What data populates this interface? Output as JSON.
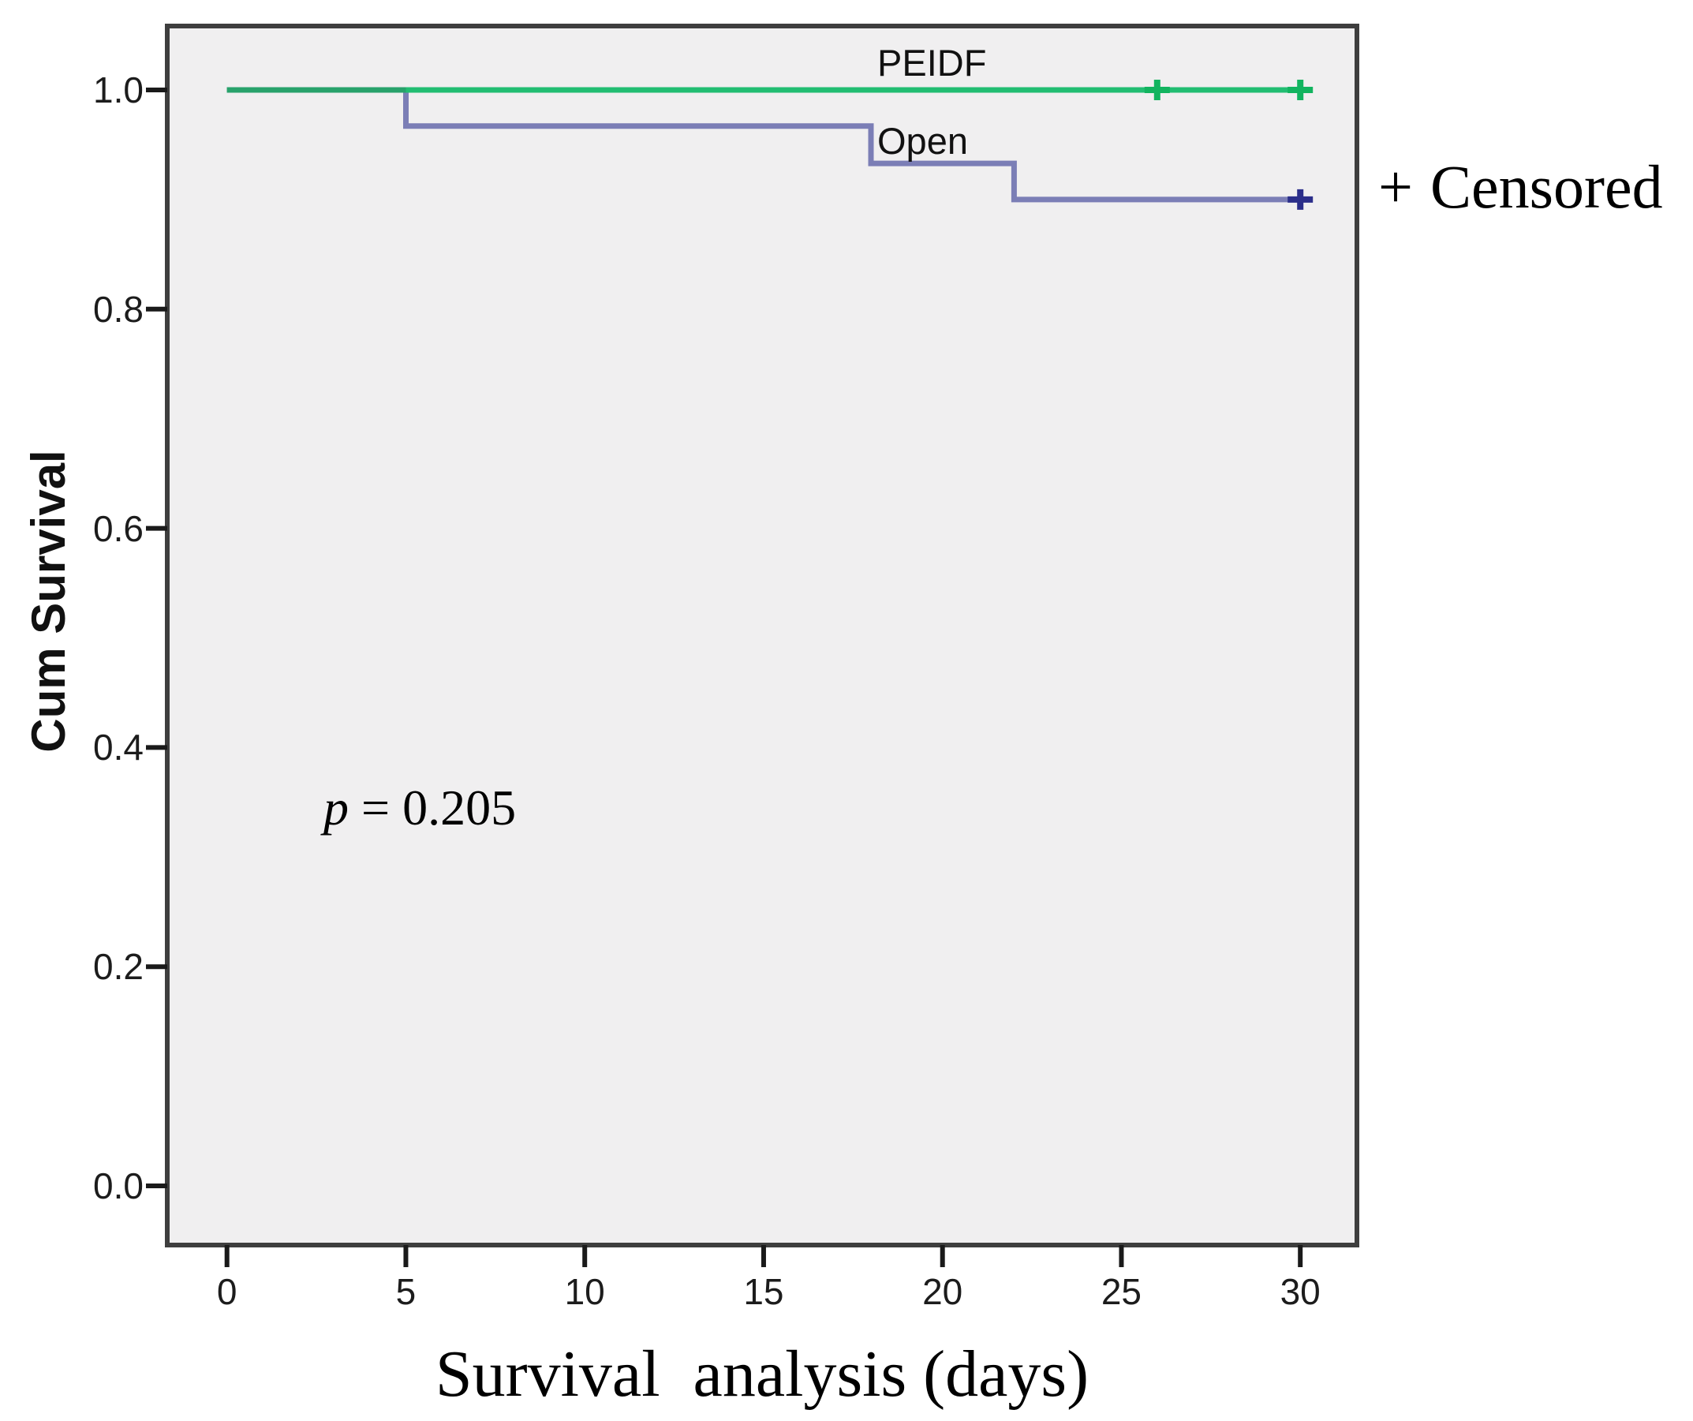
{
  "figure": {
    "y_axis_title": "Cum Survival",
    "x_axis_title": "Survival  analysis (days)",
    "p_annotation": {
      "symbol": "p",
      "rest": " = 0.205"
    },
    "legend": {
      "marker": "+",
      "label": "Censored"
    },
    "series_labels": {
      "peidf": "PEIDF",
      "open": "Open"
    }
  },
  "chart_data": {
    "type": "line",
    "subtype": "kaplan-meier-step-plot",
    "title": "",
    "xlabel": "Survival  analysis (days)",
    "ylabel": "Cum Survival",
    "xlim": [
      0,
      30
    ],
    "ylim": [
      0.0,
      1.0
    ],
    "grid": false,
    "plot_background": "#f0eff0",
    "frame_color": "#3e3e3e",
    "legend_text": "+ Censored",
    "legend_position": "right-of-plot-top",
    "annotations": [
      "p = 0.205"
    ],
    "x_ticks": [
      {
        "label": "0",
        "value": 0
      },
      {
        "label": "5",
        "value": 5
      },
      {
        "label": "10",
        "value": 10
      },
      {
        "label": "15",
        "value": 15
      },
      {
        "label": "20",
        "value": 20
      },
      {
        "label": "25",
        "value": 25
      },
      {
        "label": "30",
        "value": 30
      }
    ],
    "y_ticks": [
      {
        "label": "1.0",
        "value": 1.0
      },
      {
        "label": "0.8",
        "value": 0.8
      },
      {
        "label": "0.6",
        "value": 0.6
      },
      {
        "label": "0.4",
        "value": 0.4
      },
      {
        "label": "0.2",
        "value": 0.2
      },
      {
        "label": "0.0",
        "value": 0.0
      }
    ],
    "series": [
      {
        "name": "Open",
        "color": "#7b7eb6",
        "censor_color": "#2b2e8a",
        "steps": [
          [
            0,
            1.0
          ],
          [
            5,
            1.0
          ],
          [
            5,
            0.967
          ],
          [
            18,
            0.967
          ],
          [
            18,
            0.933
          ],
          [
            22,
            0.933
          ],
          [
            22,
            0.9
          ],
          [
            30,
            0.9
          ]
        ],
        "censored": [
          [
            30,
            0.9
          ]
        ]
      },
      {
        "name": "PEIDF",
        "color": "#22bd72",
        "censor_color": "#12b45f",
        "steps": [
          [
            0,
            1.0
          ],
          [
            30,
            1.0
          ]
        ],
        "censored": [
          [
            26,
            1.0
          ],
          [
            30,
            1.0
          ]
        ]
      }
    ],
    "overlap_segment": {
      "from": 0,
      "to": 5,
      "at": 1.0,
      "color": "#28a26b"
    }
  }
}
